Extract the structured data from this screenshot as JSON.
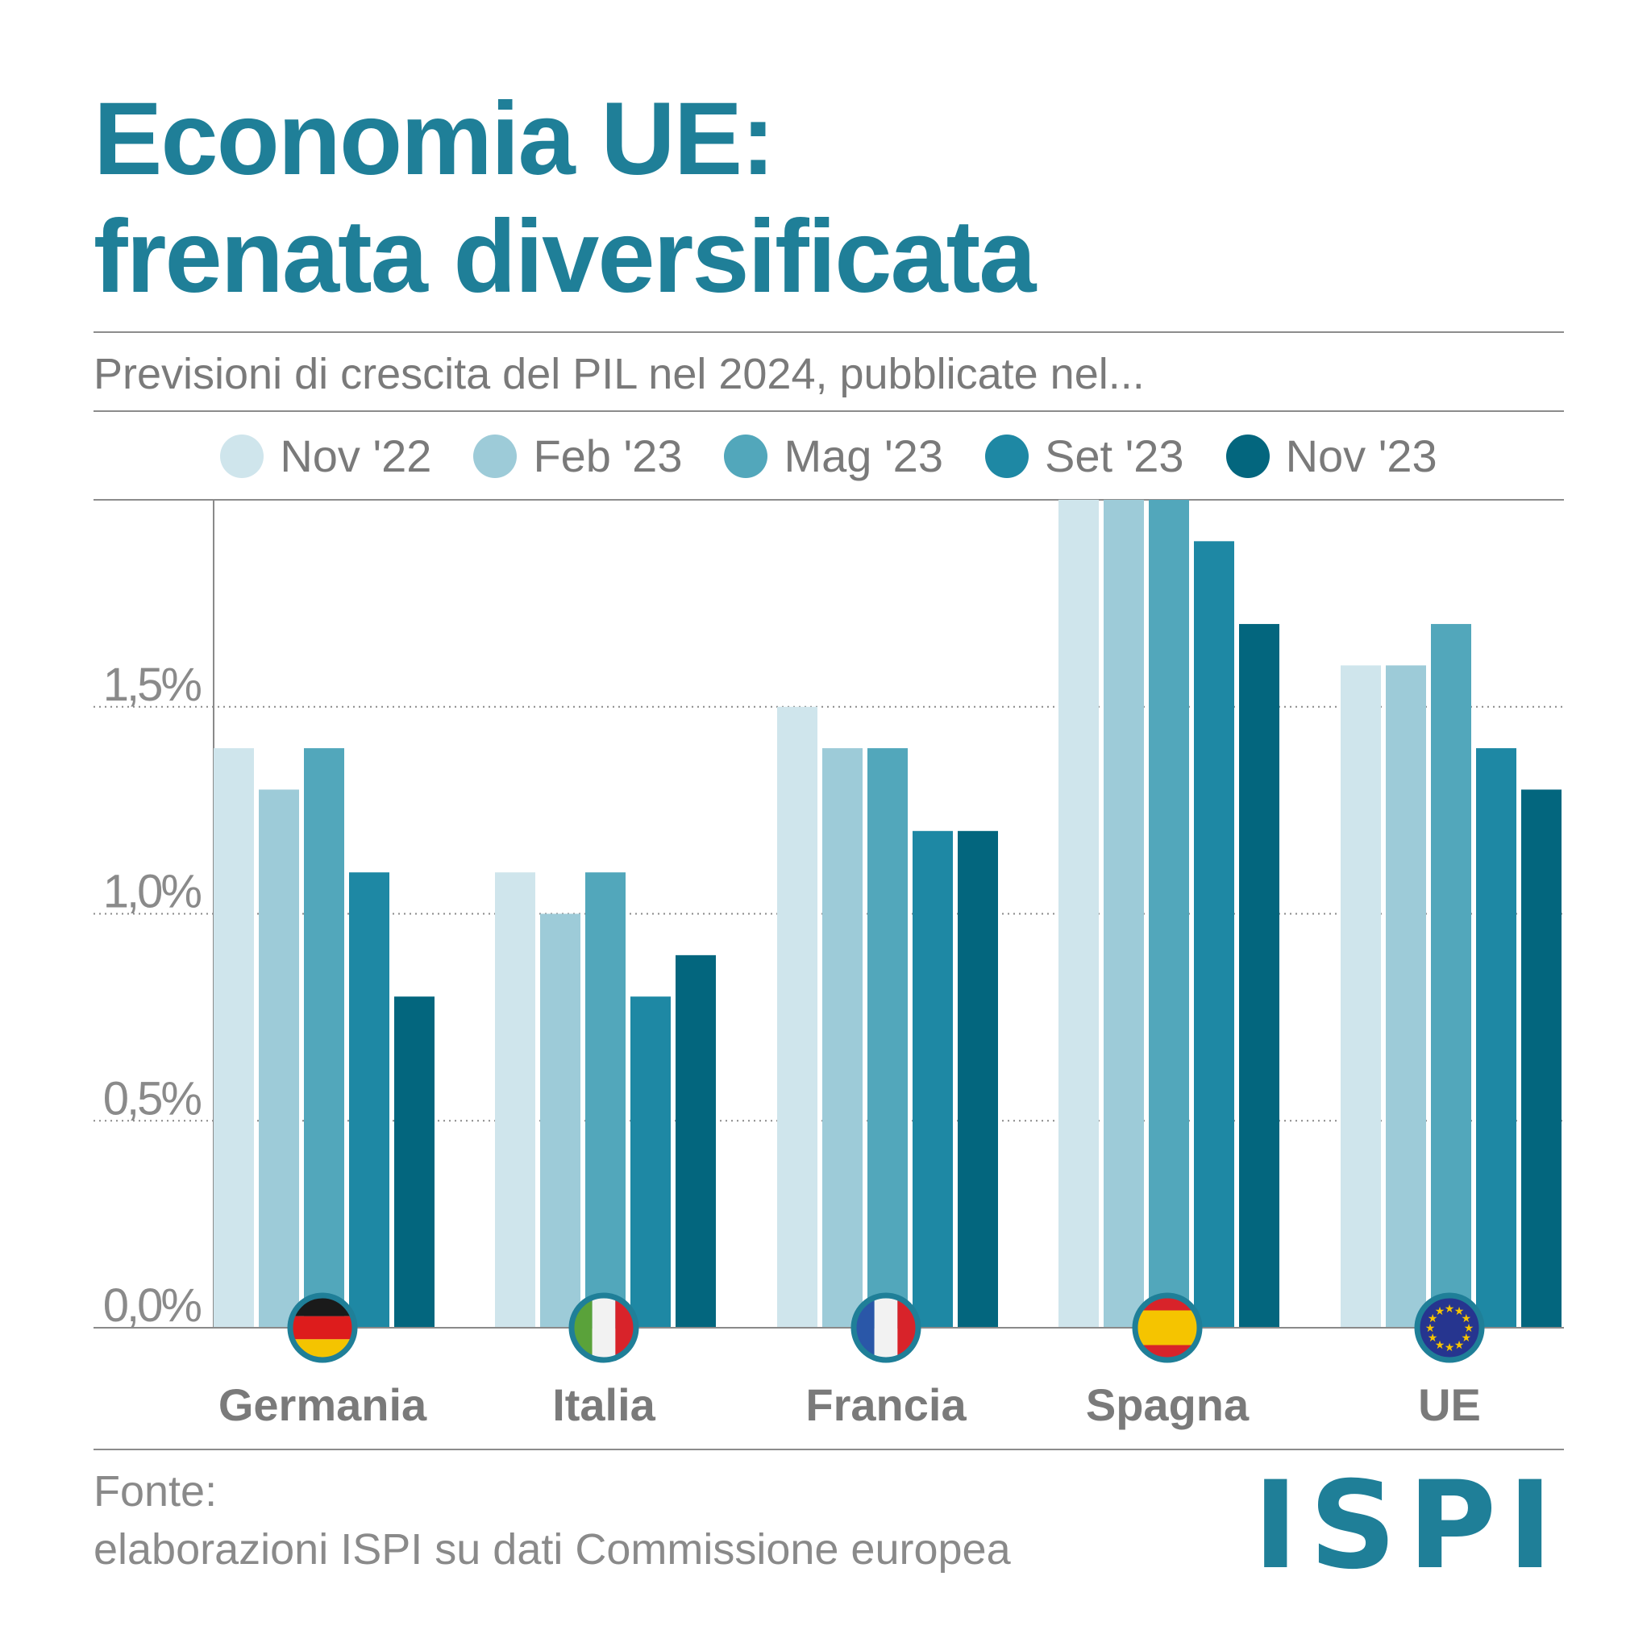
{
  "title": {
    "line1": "Economia UE:",
    "line2": "frenata diversificata"
  },
  "subtitle": "Previsioni di crescita del PIL nel 2024, pubblicate nel...",
  "legend": [
    {
      "label": "Nov '22",
      "color": "#cfe5ec"
    },
    {
      "label": "Feb '23",
      "color": "#9dcbd8"
    },
    {
      "label": "Mag '23",
      "color": "#52a7bb"
    },
    {
      "label": "Set '23",
      "color": "#1e88a4"
    },
    {
      "label": "Nov '23",
      "color": "#03667e"
    }
  ],
  "chart_data": {
    "type": "bar",
    "categories": [
      "Germania",
      "Italia",
      "Francia",
      "Spagna",
      "UE"
    ],
    "flags": [
      "germany-flag-icon",
      "italy-flag-icon",
      "france-flag-icon",
      "spain-flag-icon",
      "eu-flag-icon"
    ],
    "series": [
      {
        "name": "Nov '22",
        "values": [
          1.4,
          1.1,
          1.5,
          2.0,
          1.6
        ]
      },
      {
        "name": "Feb '23",
        "values": [
          1.3,
          1.0,
          1.4,
          2.0,
          1.6
        ]
      },
      {
        "name": "Mag '23",
        "values": [
          1.4,
          1.1,
          1.4,
          2.0,
          1.7
        ]
      },
      {
        "name": "Set '23",
        "values": [
          1.1,
          0.8,
          1.2,
          1.9,
          1.4
        ]
      },
      {
        "name": "Nov '23",
        "values": [
          0.8,
          0.9,
          1.2,
          1.7,
          1.3
        ]
      }
    ],
    "yticks": [
      {
        "value": 0.0,
        "label": "0,0%"
      },
      {
        "value": 0.5,
        "label": "0,5%"
      },
      {
        "value": 1.0,
        "label": "1,0%"
      },
      {
        "value": 1.5,
        "label": "1,5%"
      }
    ],
    "ylim": [
      0,
      2.0
    ],
    "grid": true
  },
  "footer": {
    "source_label": "Fonte:",
    "source_text": "elaborazioni ISPI su dati Commissione europea",
    "logo": "ISPI"
  }
}
